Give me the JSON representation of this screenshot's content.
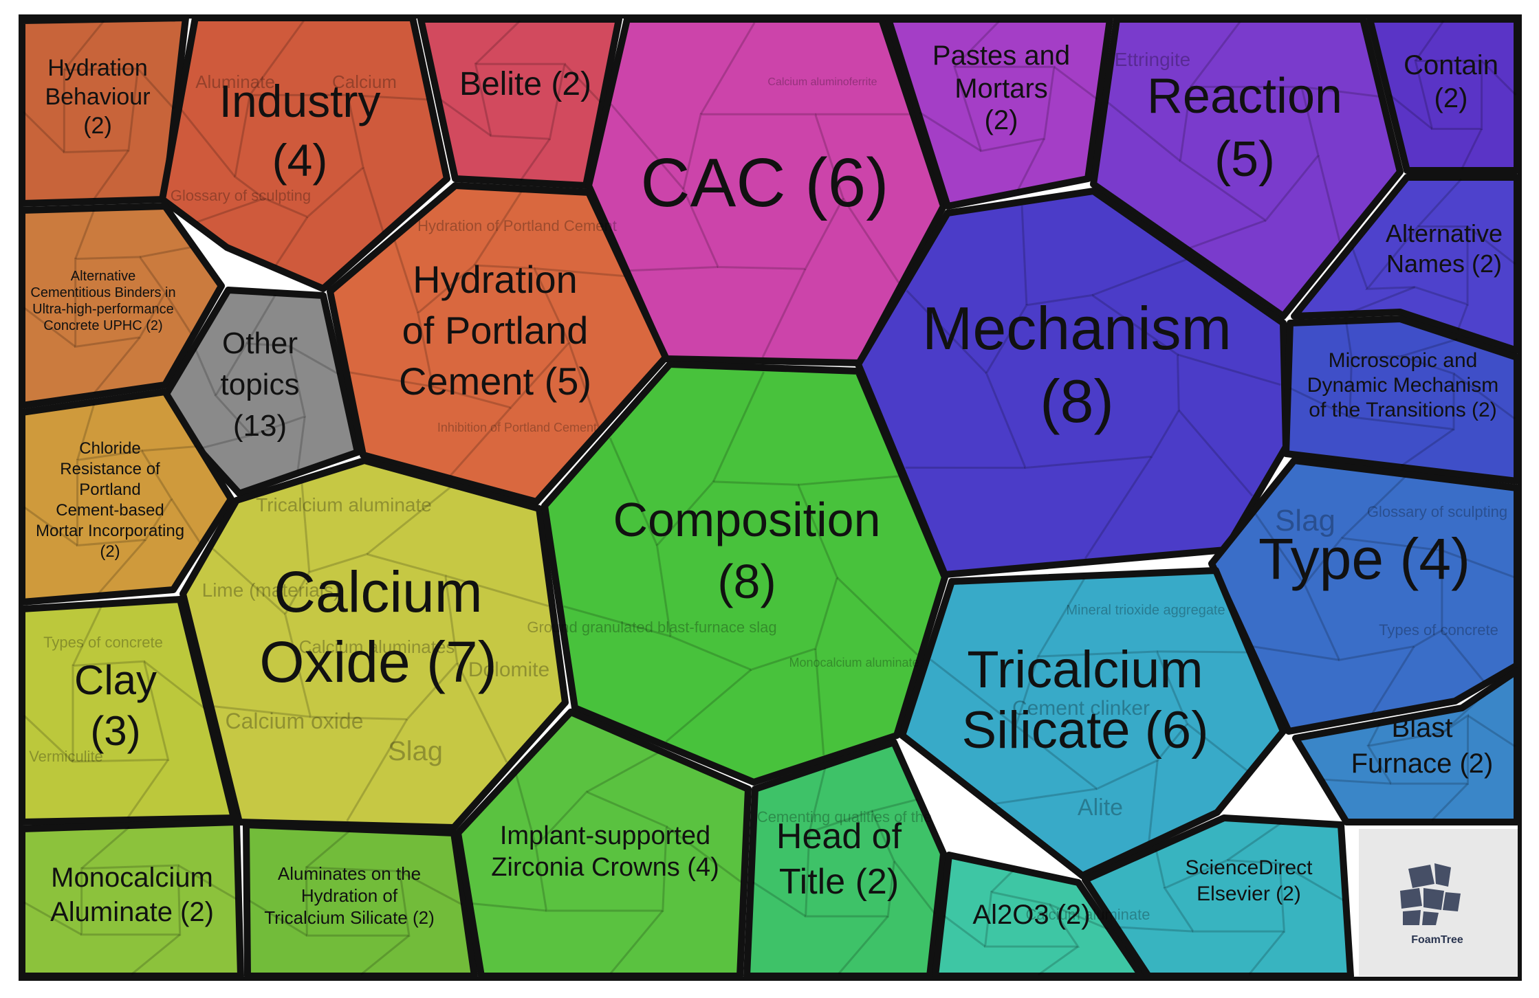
{
  "groups": [
    {
      "key": "hydration_behaviour",
      "label": "Hydration Behaviour (2)",
      "color": "#c8643a",
      "interactable": true
    },
    {
      "key": "industry",
      "label": "Industry (4)",
      "color": "#cf5a3c",
      "interactable": true
    },
    {
      "key": "belite",
      "label": "Belite (2)",
      "color": "#d24a5e",
      "interactable": true
    },
    {
      "key": "cac",
      "label": "CAC (6)",
      "color": "#cc44aa",
      "interactable": true
    },
    {
      "key": "pastes_mortars",
      "label": "Pastes and Mortars (2)",
      "color": "#a43ec6",
      "interactable": true
    },
    {
      "key": "reaction",
      "label": "Reaction (5)",
      "color": "#7a3bcc",
      "interactable": true
    },
    {
      "key": "contain",
      "label": "Contain (2)",
      "color": "#5a34c6",
      "interactable": true
    },
    {
      "key": "alt_binders",
      "label": "Alternative Cementitious Binders in Ultra-high-performance Concrete UPHC (2)",
      "color": "#cb7b3e",
      "interactable": true
    },
    {
      "key": "other_topics",
      "label": "Other topics (13)",
      "color": "#8a8a8a",
      "interactable": true
    },
    {
      "key": "hydration_portland",
      "label": "Hydration of Portland Cement (5)",
      "color": "#d9683f",
      "interactable": true
    },
    {
      "key": "mechanism",
      "label": "Mechanism (8)",
      "color": "#4b3cc8",
      "interactable": true
    },
    {
      "key": "alt_names",
      "label": "Alternative Names (2)",
      "color": "#4e42cc",
      "interactable": true
    },
    {
      "key": "microscopic",
      "label": "Microscopic and Dynamic Mechanism of the Transitions (2)",
      "color": "#3f4fc8",
      "interactable": true
    },
    {
      "key": "chloride",
      "label": "Chloride Resistance of Portland Cement-based Mortar Incorporating (2)",
      "color": "#cf9a3c",
      "interactable": true
    },
    {
      "key": "calcium_oxide",
      "label": "Calcium Oxide (7)",
      "color": "#c6c844",
      "interactable": true
    },
    {
      "key": "composition",
      "label": "Composition (8)",
      "color": "#48c23c",
      "interactable": true
    },
    {
      "key": "type",
      "label": "Type (4)",
      "color": "#3a6ec8",
      "interactable": true
    },
    {
      "key": "clay",
      "label": "Clay (3)",
      "color": "#bcc83c",
      "interactable": true
    },
    {
      "key": "tricalcium_silicate",
      "label": "Tricalcium Silicate (6)",
      "color": "#38aac8",
      "interactable": true
    },
    {
      "key": "blast_furnace",
      "label": "Blast Furnace (2)",
      "color": "#3a86c8",
      "interactable": true
    },
    {
      "key": "monocalcium",
      "label": "Monocalcium Aluminate (2)",
      "color": "#8cc23c",
      "interactable": true
    },
    {
      "key": "aluminates",
      "label": "Aluminates on the Hydration of Tricalcium Silicate (2)",
      "color": "#72bc3a",
      "interactable": true
    },
    {
      "key": "implant",
      "label": "Implant-supported Zirconia Crowns (4)",
      "color": "#5ac240",
      "interactable": true
    },
    {
      "key": "head_of_title",
      "label": "Head of Title (2)",
      "color": "#3ec268",
      "interactable": true
    },
    {
      "key": "al2o3",
      "label": "Al2O3 (2)",
      "color": "#3ec6a4",
      "interactable": true
    },
    {
      "key": "sciencedirect",
      "label": "ScienceDirect Elsevier (2)",
      "color": "#38b4c0",
      "interactable": true
    },
    {
      "key": "foamtree_logo",
      "label": "FoamTree",
      "color": "#e8e8e8",
      "interactable": false
    }
  ],
  "ghost_labels": {
    "calcium_oxide": [
      "Tricalcium aluminate",
      "Lime (materials)",
      "Calcium aluminates",
      "Calcium oxide",
      "Slag",
      "Dolomite"
    ],
    "clay": [
      "Types of concrete",
      "Vermiculite"
    ],
    "composition": [
      "Monocalcium aluminate",
      "Ground granulated blast-furnace slag"
    ],
    "tricalcium_silicate": [
      "Alite",
      "Cement clinker",
      "Mineral trioxide aggregate"
    ],
    "type": [
      "Slag",
      "Glossary of sculpting",
      "Types of concrete"
    ],
    "hydration_portland": [
      "Hydration of Portland Cement",
      "Inhibition of Portland Cement"
    ],
    "industry": [
      "Aluminate",
      "Calcium",
      "Glossary of sculpting"
    ],
    "cac": [
      "Calcium aluminoferrite"
    ],
    "reaction": [
      "Ettringite"
    ],
    "head_of_title": [
      "Cementing qualities of the"
    ],
    "al2o3": [
      "Calcium aluminate"
    ]
  },
  "logo": {
    "text": "FoamTree"
  }
}
